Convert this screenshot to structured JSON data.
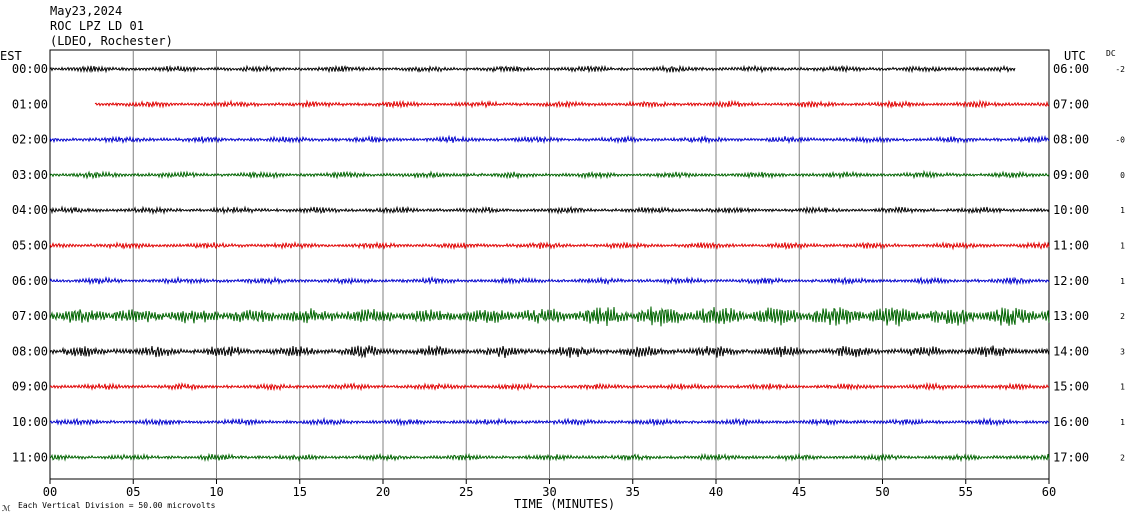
{
  "header": {
    "date": "May23,2024",
    "station": "ROC LPZ LD 01",
    "network": "(LDEO, Rochester)"
  },
  "left_label": "EST",
  "right_label": "UTC",
  "dc_label": "DC",
  "footer": {
    "note": "Each Vertical Division =   50.00 microvolts",
    "xlabel": "TIME (MINUTES)"
  },
  "colors": {
    "trace_cycle": [
      "#000000",
      "#e00000",
      "#0000cc",
      "#006400"
    ],
    "grid": "#808080"
  },
  "chart_data": {
    "type": "line",
    "title": "",
    "xlabel": "TIME (MINUTES)",
    "xlim": [
      0,
      60
    ],
    "x_ticks": [
      "00",
      "05",
      "10",
      "15",
      "20",
      "25",
      "30",
      "35",
      "40",
      "45",
      "50",
      "55",
      "60"
    ],
    "grid": true,
    "rows": [
      {
        "est": "00:00",
        "utc": "06:00",
        "dc": "-2",
        "color": "#000000",
        "start": 0,
        "end": 58,
        "amplitude": "low"
      },
      {
        "est": "01:00",
        "utc": "07:00",
        "dc": "",
        "color": "#e00000",
        "start": 2.7,
        "end": 60,
        "amplitude": "low"
      },
      {
        "est": "02:00",
        "utc": "08:00",
        "dc": "-0",
        "color": "#0000cc",
        "start": 0,
        "end": 60,
        "amplitude": "low"
      },
      {
        "est": "03:00",
        "utc": "09:00",
        "dc": "0",
        "color": "#006400",
        "start": 0,
        "end": 60,
        "amplitude": "low"
      },
      {
        "est": "04:00",
        "utc": "10:00",
        "dc": "1",
        "color": "#000000",
        "start": 0,
        "end": 60,
        "amplitude": "low"
      },
      {
        "est": "05:00",
        "utc": "11:00",
        "dc": "1",
        "color": "#e00000",
        "start": 0,
        "end": 60,
        "amplitude": "low"
      },
      {
        "est": "06:00",
        "utc": "12:00",
        "dc": "1",
        "color": "#0000cc",
        "start": 0,
        "end": 60,
        "amplitude": "low"
      },
      {
        "est": "07:00",
        "utc": "13:00",
        "dc": "2",
        "color": "#006400",
        "start": 0,
        "end": 60,
        "amplitude": "high"
      },
      {
        "est": "08:00",
        "utc": "14:00",
        "dc": "3",
        "color": "#000000",
        "start": 0,
        "end": 60,
        "amplitude": "medium"
      },
      {
        "est": "09:00",
        "utc": "15:00",
        "dc": "1",
        "color": "#e00000",
        "start": 0,
        "end": 60,
        "amplitude": "low"
      },
      {
        "est": "10:00",
        "utc": "16:00",
        "dc": "1",
        "color": "#0000cc",
        "start": 0,
        "end": 60,
        "amplitude": "low"
      },
      {
        "est": "11:00",
        "utc": "17:00",
        "dc": "2",
        "color": "#006400",
        "start": 0,
        "end": 60,
        "amplitude": "low"
      }
    ]
  }
}
